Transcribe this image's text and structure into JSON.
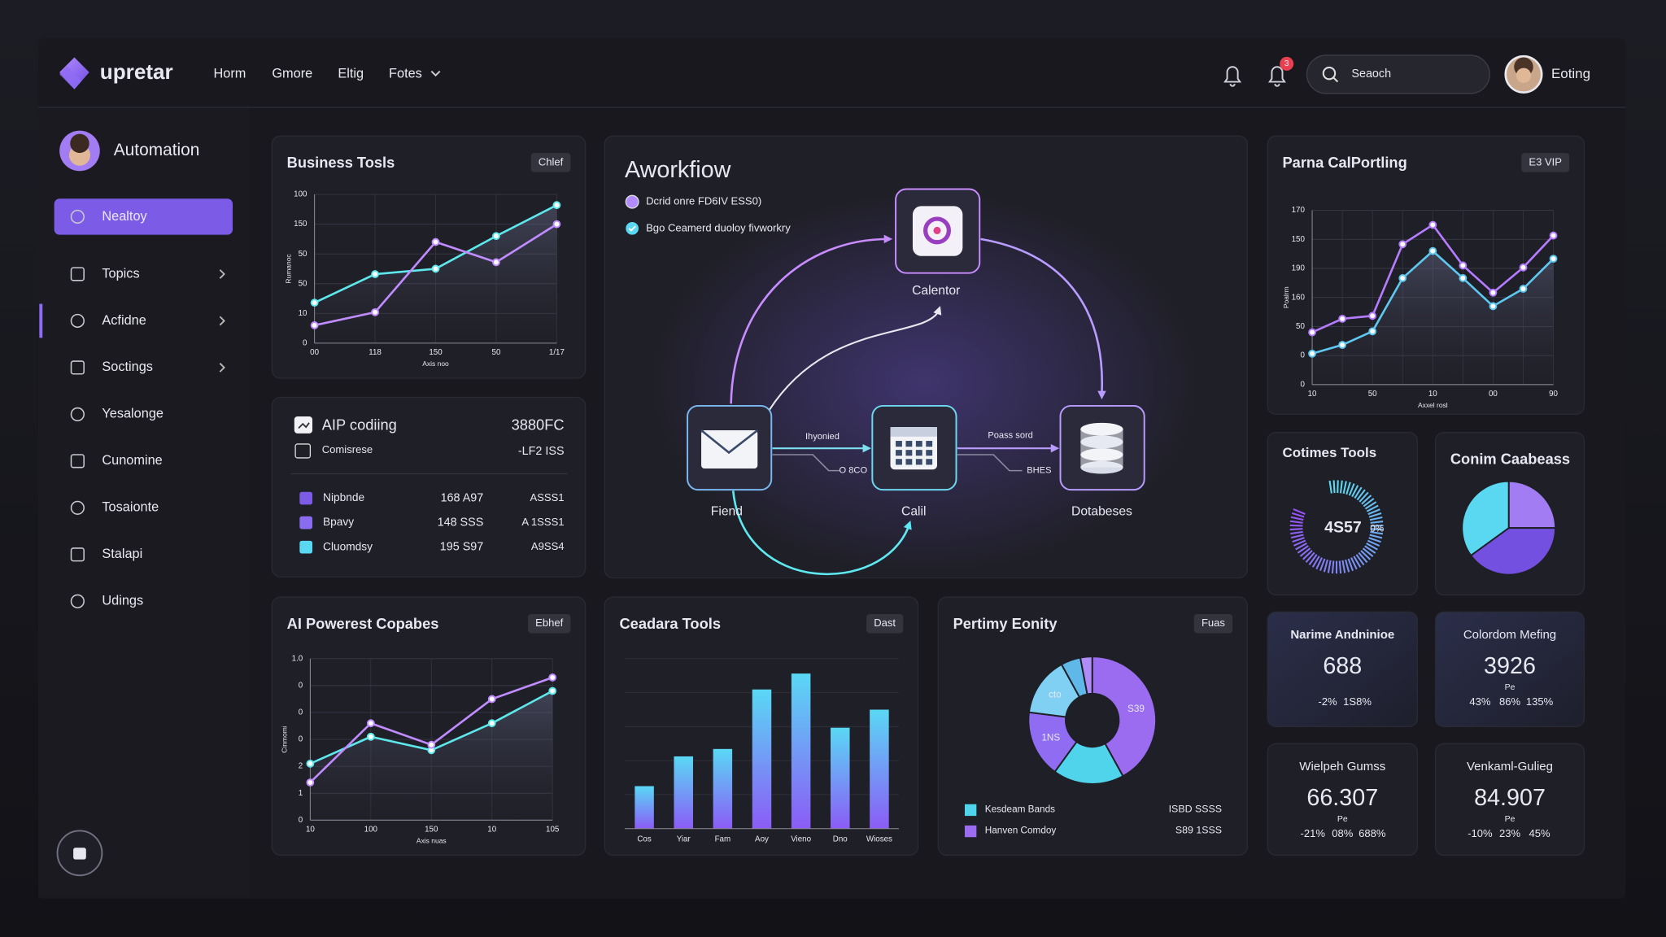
{
  "header": {
    "logo": "upretar",
    "nav": [
      "Horm",
      "Gmore",
      "Eltig",
      "Fotes"
    ],
    "notification_count": 3,
    "search_placeholder": "Seaoch",
    "user": "Eoting"
  },
  "sidebar": {
    "profile": "Automation",
    "items": [
      "Nealtoy",
      "Topics",
      "Acfidne",
      "Soctings",
      "Yesalonge",
      "Cunomine",
      "Tosaionte",
      "Stalapi",
      "Udings"
    ]
  },
  "workflow": {
    "title": "Aworkfiow",
    "legend": [
      "Dcrid onre FD6IV ESS0)",
      "Bgo Ceamerd duoloy fivworkry"
    ],
    "nodes": [
      {
        "label": "Calentor"
      },
      {
        "label": "Fiend"
      },
      {
        "label": "Calil"
      },
      {
        "label": "Dotabeses"
      }
    ],
    "edge_labels": [
      "Ihyonied",
      "O 8CO",
      "Poass sord",
      "BHES"
    ]
  },
  "aip_table": {
    "title": "AIP codiing",
    "title_value": "3880FC",
    "subtitle": "Comisrese",
    "subtitle_value": "-LF2 ISS",
    "rows": [
      [
        "Nipbnde",
        "168 A97",
        "ASSS1"
      ],
      [
        "Bpavy",
        "148 SSS",
        "A 1SSS1"
      ],
      [
        "Cluomdsy",
        "195 S97",
        "A9SS4"
      ]
    ]
  },
  "gauge": {
    "title": "Cotimes Tools",
    "value": "4S57",
    "unit": "0%"
  },
  "stat_cards": [
    {
      "title": "Narime Andninioe",
      "value": "688",
      "changes": [
        "-2%",
        "1S8%"
      ]
    },
    {
      "title": "Colordom Mefing",
      "value": "3926",
      "note": "Pe",
      "changes": [
        "43%",
        "86%",
        "135%"
      ]
    },
    {
      "title": "Wielpeh Gumss",
      "value": "66.307",
      "note": "Pe",
      "changes": [
        "-21%",
        "08%",
        "688%"
      ]
    },
    {
      "title": "Venkaml-Gulieg",
      "value": "84.907",
      "note": "Pe",
      "changes": [
        "-10%",
        "23%",
        "45%"
      ]
    }
  ],
  "chart_data": [
    {
      "type": "line",
      "title": "Business Tosls",
      "badge": "Chlef",
      "x_label": "Axis noo",
      "y_label": "Rumanoc",
      "categories": [
        "00",
        "118",
        "150",
        "50",
        "1/17"
      ],
      "ylim": [
        0,
        250
      ],
      "yticks": [
        0,
        {
          "value": 50,
          "label": "10"
        },
        {
          "value": 100,
          "label": "50"
        },
        {
          "value": 150,
          "label": "50"
        },
        {
          "value": 200,
          "label": "150"
        },
        {
          "value": 250,
          "label": "100"
        }
      ],
      "grid": true,
      "series": [
        {
          "color": "#5ee8ec",
          "values": [
            68,
            116,
            125,
            180,
            232
          ]
        },
        {
          "color": "#c08cff",
          "values": [
            30,
            52,
            170,
            136,
            200
          ]
        }
      ]
    },
    {
      "type": "line",
      "title": "AI Powerest Copabes",
      "badge": "Ebhef",
      "x_label": "Axis nuas",
      "y_label": "Cinmomi",
      "categories": [
        "10",
        "100",
        "150",
        "10",
        "105"
      ],
      "ylim": [
        0,
        6
      ],
      "yticks": [
        0,
        1,
        2,
        {
          "value": 3,
          "label": "0"
        },
        {
          "value": 4,
          "label": "0"
        },
        {
          "value": 5,
          "label": "0"
        },
        {
          "value": 6,
          "label": "1.0"
        }
      ],
      "grid": true,
      "series": [
        {
          "color": "#5ee8ec",
          "values": [
            2.1,
            3.1,
            2.6,
            3.6,
            4.8
          ]
        },
        {
          "color": "#c08cff",
          "values": [
            1.4,
            3.6,
            2.8,
            4.5,
            5.3
          ]
        }
      ]
    },
    {
      "type": "line",
      "title": "Parna CalPortling",
      "badge": "E3 VIP",
      "x_label": "Axxel rosl",
      "y_label": "Poalrm",
      "categories": [
        "10",
        null,
        "50",
        null,
        "10",
        null,
        "00",
        null,
        "90"
      ],
      "ylim": [
        0,
        180
      ],
      "yticks": [
        0,
        {
          "value": 30,
          "label": "0"
        },
        {
          "value": 60,
          "label": "50"
        },
        {
          "value": 90,
          "label": "160"
        },
        {
          "value": 120,
          "label": "190"
        },
        150,
        {
          "value": 180,
          "label": "170"
        }
      ],
      "grid": true,
      "series": [
        {
          "color": "#5ec8f0",
          "values": [
            32,
            41,
            55,
            110,
            138,
            110,
            81,
            99,
            130
          ]
        },
        {
          "color": "#b57cff",
          "values": [
            54,
            68,
            71,
            145,
            165,
            123,
            95,
            121,
            154
          ]
        }
      ]
    },
    {
      "type": "bar",
      "title": "Ceadara Tools",
      "badge": "Dast",
      "categories": [
        "Cos",
        "Yiar",
        "Fam",
        "Aoy",
        "Vieno",
        "Dno",
        "Wioses"
      ],
      "values": [
        40,
        68,
        75,
        131,
        146,
        95,
        112
      ],
      "ylim": [
        0,
        160
      ],
      "color": [
        "#5ad8f5",
        "#8b5cf6"
      ]
    },
    {
      "type": "donut",
      "title": "Pertimy Eonity",
      "badge": "Fuas",
      "categories": [
        "S39",
        null,
        "1NS",
        "cto",
        null,
        null
      ],
      "values": [
        42,
        18,
        17,
        15,
        5,
        3
      ],
      "colors": [
        "#9b6cf0",
        "#4fd4ec",
        "#8f6cf2",
        "#7fd0f2",
        "#5fb8e8",
        "#b08cf8"
      ],
      "legend": [
        {
          "name": "Kesdeam Bands",
          "value": "ISBD SSSS",
          "color": "#4fd4ec"
        },
        {
          "name": "Hanven Comdoy",
          "value": "S89 1SSS",
          "color": "#9b6cf0"
        }
      ]
    },
    {
      "type": "pie",
      "title": "Conim Caabeass",
      "categories": [
        null,
        null,
        null
      ],
      "values": [
        25,
        40,
        35
      ],
      "colors": [
        "#a27cf2",
        "#7350e0",
        "#5ad8f2"
      ]
    }
  ]
}
